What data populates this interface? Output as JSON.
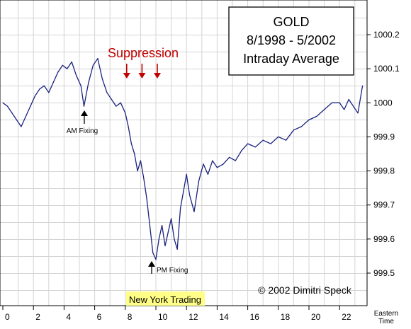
{
  "chart_data": {
    "type": "line",
    "title_lines": [
      "GOLD",
      "8/1998 - 5/2002",
      "Intraday Average"
    ],
    "xlabel": "Eastern Time",
    "ylabel": "",
    "xlim": [
      0,
      24
    ],
    "ylim": [
      999.45,
      1000.25
    ],
    "grid": true,
    "x_ticks": [
      0,
      2,
      4,
      6,
      8,
      10,
      12,
      14,
      16,
      18,
      20,
      22
    ],
    "x_tick_labels": [
      "0",
      "2",
      "4",
      "6",
      "8",
      "10",
      "12",
      "14",
      "16",
      "18",
      "20",
      "22"
    ],
    "y_ticks": [
      999.5,
      999.6,
      999.7,
      999.8,
      999.9,
      1000.0,
      1000.1,
      1000.2
    ],
    "y_tick_labels": [
      "999.5",
      "999.6",
      "999.7",
      "999.8",
      "999.9",
      "1000",
      "1000.1",
      "1000.2"
    ],
    "series": [
      {
        "name": "",
        "color": "#1a237e",
        "x": [
          0,
          0.3,
          0.6,
          0.9,
          1.2,
          1.5,
          1.8,
          2.1,
          2.4,
          2.7,
          3.0,
          3.3,
          3.6,
          3.9,
          4.2,
          4.5,
          4.8,
          5.1,
          5.3,
          5.6,
          5.9,
          6.2,
          6.5,
          6.8,
          7.1,
          7.4,
          7.7,
          8.0,
          8.2,
          8.4,
          8.6,
          8.8,
          9.0,
          9.2,
          9.4,
          9.6,
          9.8,
          10.0,
          10.2,
          10.4,
          10.6,
          10.8,
          11.0,
          11.2,
          11.4,
          11.6,
          11.8,
          12.0,
          12.2,
          12.5,
          12.8,
          13.1,
          13.4,
          13.7,
          14.0,
          14.4,
          14.8,
          15.2,
          15.6,
          16.0,
          16.5,
          17.0,
          17.5,
          18.0,
          18.5,
          19.0,
          19.5,
          20.0,
          20.5,
          21.0,
          21.5,
          22.0,
          22.3,
          22.6,
          22.9,
          23.2,
          23.5
        ],
        "values": [
          1000.0,
          999.99,
          999.97,
          999.95,
          999.93,
          999.96,
          999.99,
          1000.02,
          1000.04,
          1000.05,
          1000.03,
          1000.06,
          1000.09,
          1000.11,
          1000.1,
          1000.12,
          1000.08,
          1000.05,
          999.99,
          1000.06,
          1000.11,
          1000.13,
          1000.07,
          1000.03,
          1000.01,
          999.99,
          1000.0,
          999.97,
          999.93,
          999.88,
          999.85,
          999.8,
          999.83,
          999.78,
          999.72,
          999.64,
          999.56,
          999.54,
          999.6,
          999.64,
          999.58,
          999.62,
          999.66,
          999.6,
          999.57,
          999.69,
          999.74,
          999.79,
          999.73,
          999.68,
          999.77,
          999.82,
          999.79,
          999.83,
          999.81,
          999.82,
          999.84,
          999.83,
          999.86,
          999.88,
          999.87,
          999.89,
          999.88,
          999.9,
          999.89,
          999.92,
          999.93,
          999.95,
          999.96,
          999.98,
          1000.0,
          1000.0,
          999.98,
          1000.01,
          999.99,
          999.97,
          1000.05
        ]
      }
    ],
    "annotations": [
      {
        "text": "Suppression",
        "color": "#c00000"
      },
      {
        "text": "AM Fixing",
        "x": 5.2,
        "y": 1000.0,
        "arrow": "up"
      },
      {
        "text": "PM Fixing",
        "x": 9.7,
        "y": 999.54,
        "arrow": "up"
      },
      {
        "text": "New York Trading",
        "x_from": 8.1,
        "x_to": 12.0,
        "highlight": "#ffff88"
      },
      {
        "text": "© 2002 Dimitri Speck"
      }
    ],
    "suppression_arrows_x": [
      8.0,
      9.0,
      10.0
    ]
  }
}
